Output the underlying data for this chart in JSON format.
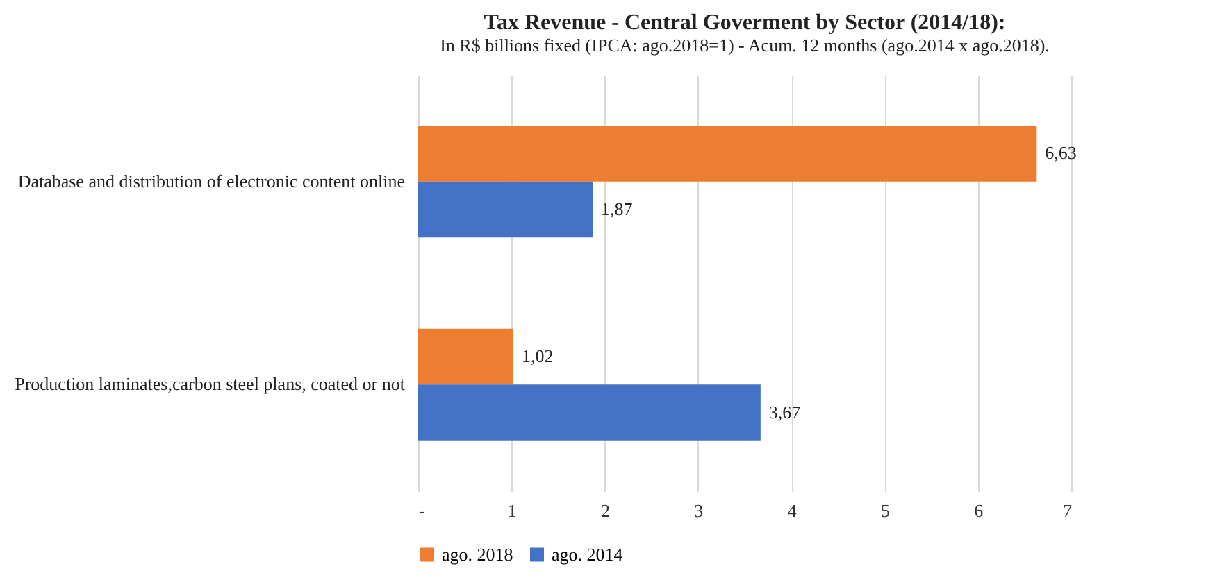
{
  "chart_data": {
    "type": "bar",
    "orientation": "horizontal",
    "title": "Tax Revenue - Central Goverment by Sector (2014/18):",
    "subtitle": "In R$ billions fixed (IPCA: ago.2018=1)  - Acum. 12 months (ago.2014 x ago.2018).",
    "categories": [
      "Database and distribution of electronic content online",
      "Production laminates,carbon steel plans, coated or not"
    ],
    "series": [
      {
        "name": "ago. 2018",
        "color": "#ed7d31",
        "values": [
          6.63,
          1.02
        ],
        "value_labels": [
          "6,63",
          "1,02"
        ]
      },
      {
        "name": "ago. 2014",
        "color": "#4472c4",
        "values": [
          1.87,
          3.67
        ],
        "value_labels": [
          "1,87",
          "3,67"
        ]
      }
    ],
    "xlim": [
      0,
      7
    ],
    "xticks": [
      {
        "value": 0,
        "label": "-"
      },
      1,
      2,
      3,
      4,
      5,
      6,
      7
    ],
    "grid": "x",
    "legend": "bottom"
  }
}
